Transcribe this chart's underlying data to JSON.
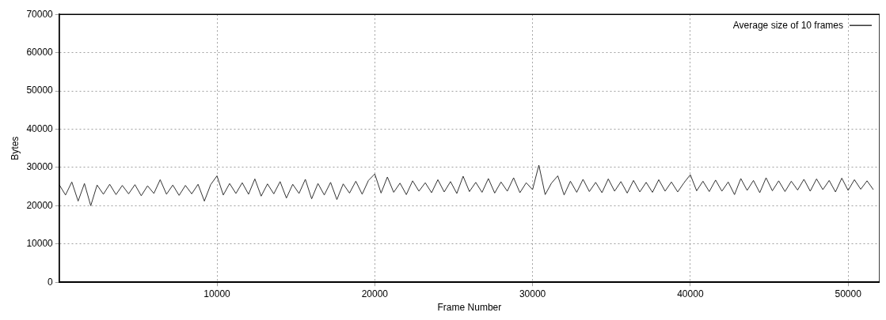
{
  "chart_data": {
    "type": "line",
    "xlabel": "Frame Number",
    "ylabel": "Bytes",
    "xlim": [
      0,
      52000
    ],
    "xticks": [
      10000,
      20000,
      30000,
      40000,
      50000
    ],
    "ylim": [
      0,
      70000
    ],
    "yticks": [
      0,
      10000,
      20000,
      30000,
      40000,
      50000,
      60000,
      70000
    ],
    "grid": true,
    "legend": "top right",
    "marker": "none",
    "line_style": "solid",
    "series": [
      {
        "name": "Average size of 10 frames",
        "color": "#333333",
        "x": [
          0,
          400,
          800,
          1200,
          1600,
          2000,
          2400,
          2800,
          3200,
          3600,
          4000,
          4400,
          4800,
          5200,
          5600,
          6000,
          6400,
          6800,
          7200,
          7600,
          8000,
          8400,
          8800,
          9200,
          9600,
          10000,
          10400,
          10800,
          11200,
          11600,
          12000,
          12400,
          12800,
          13200,
          13600,
          14000,
          14400,
          14800,
          15200,
          15600,
          16000,
          16400,
          16800,
          17200,
          17600,
          18000,
          18400,
          18800,
          19200,
          19600,
          20000,
          20400,
          20800,
          21200,
          21600,
          22000,
          22400,
          22800,
          23200,
          23600,
          24000,
          24400,
          24800,
          25200,
          25600,
          26000,
          26400,
          26800,
          27200,
          27600,
          28000,
          28400,
          28800,
          29200,
          29600,
          30000,
          30400,
          30800,
          31200,
          31600,
          32000,
          32400,
          32800,
          33200,
          33600,
          34000,
          34400,
          34800,
          35200,
          35600,
          36000,
          36400,
          36800,
          37200,
          37600,
          38000,
          38400,
          38800,
          39200,
          39600,
          40000,
          40400,
          40800,
          41200,
          41600,
          42000,
          42400,
          42800,
          43200,
          43600,
          44000,
          44400,
          44800,
          45200,
          45600,
          46000,
          46400,
          46800,
          47200,
          47600,
          48000,
          48400,
          48800,
          49200,
          49600,
          50000,
          50400,
          50800,
          51200,
          51600
        ],
        "values": [
          25500,
          22800,
          26200,
          21200,
          25800,
          20000,
          25400,
          23000,
          25600,
          22900,
          25300,
          23100,
          25500,
          22600,
          25200,
          23200,
          26800,
          23000,
          25400,
          22700,
          25300,
          23100,
          25600,
          21200,
          25500,
          27800,
          22800,
          25800,
          23200,
          26000,
          23000,
          27000,
          22500,
          25700,
          23100,
          26300,
          22000,
          25600,
          23200,
          26900,
          21800,
          25800,
          22800,
          26100,
          21600,
          25700,
          23300,
          26400,
          23000,
          26600,
          28300,
          23300,
          27500,
          23500,
          25900,
          22900,
          26500,
          23800,
          26000,
          23400,
          26800,
          23600,
          26300,
          23200,
          27700,
          23700,
          26100,
          23500,
          27100,
          23300,
          26200,
          23800,
          27300,
          23400,
          26000,
          24200,
          30600,
          22900,
          25900,
          27800,
          22800,
          26400,
          23500,
          26900,
          23700,
          26100,
          23400,
          27000,
          23800,
          26300,
          23300,
          26600,
          23600,
          26100,
          23500,
          26800,
          23800,
          26200,
          23600,
          26000,
          28100,
          23900,
          26400,
          23700,
          26700,
          23800,
          26200,
          22900,
          27100,
          24000,
          26600,
          23400,
          27300,
          23900,
          26500,
          23700,
          26400,
          24100,
          26900,
          23800,
          27000,
          24200,
          26600,
          23600,
          27200,
          24000,
          26800,
          24300,
          26500,
          24200
        ]
      }
    ]
  }
}
